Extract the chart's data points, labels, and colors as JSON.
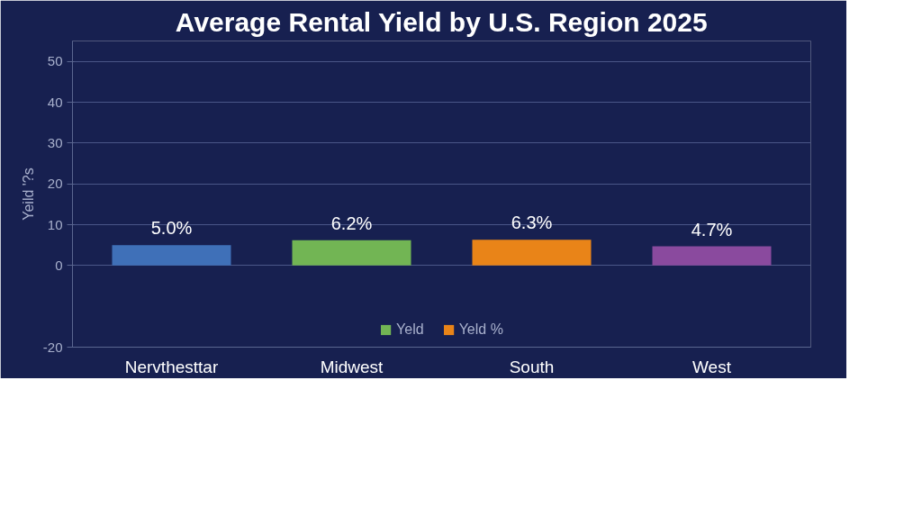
{
  "chart_data": {
    "type": "bar",
    "title": "Average Rental Yield by U.S. Region 2025",
    "ylabel": "Yeild '?s",
    "categories": [
      "Nervthesttar",
      "Midwest",
      "South",
      "West"
    ],
    "stacked": true,
    "series": [
      {
        "color": "#3f70b8",
        "values": [
          5.0,
          null,
          null,
          null
        ],
        "value_labels": [
          "5.0%",
          null,
          null,
          null
        ]
      },
      {
        "name": "Yeld",
        "color": "#72b554",
        "values": [
          null,
          6.2,
          null,
          null
        ],
        "value_labels": [
          null,
          "6.2%",
          null,
          null
        ]
      },
      {
        "name": "Yeld %",
        "color": "#e98418",
        "values": [
          null,
          null,
          6.3,
          null
        ],
        "value_labels": [
          null,
          null,
          "6.3%",
          null
        ]
      },
      {
        "color": "#8a4a9e",
        "values": [
          null,
          null,
          null,
          4.7
        ],
        "value_labels": [
          null,
          null,
          null,
          "4.7%"
        ]
      }
    ],
    "ylim": [
      -20,
      55
    ],
    "yticks": [
      -20,
      0,
      10,
      20,
      30,
      40,
      50
    ],
    "grid": "y",
    "legend": "bottom"
  }
}
